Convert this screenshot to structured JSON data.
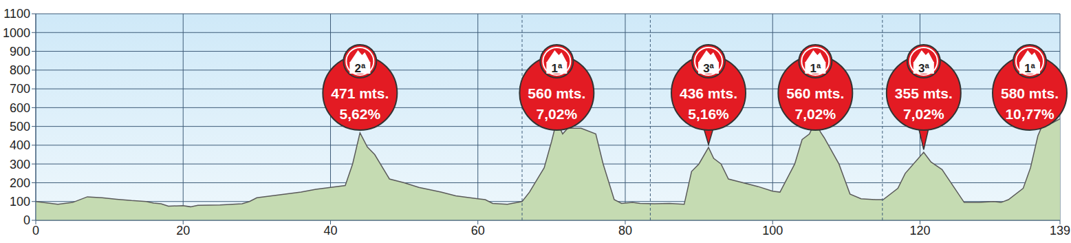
{
  "chart_data": {
    "type": "area",
    "color": "#c5dbb2",
    "grid": true,
    "xlim": [
      0,
      139
    ],
    "ylim": [
      0,
      1100
    ],
    "xticks": [
      0,
      20,
      40,
      60,
      80,
      100,
      120,
      139
    ],
    "yticks": [
      0,
      100,
      200,
      300,
      400,
      500,
      600,
      700,
      800,
      900,
      1000,
      1100
    ],
    "x": [
      0,
      3,
      5,
      7,
      9,
      11,
      13,
      15,
      16,
      17,
      18,
      20,
      21,
      22,
      25,
      28,
      29,
      30,
      32,
      34,
      36,
      38,
      40,
      42,
      43,
      44,
      45,
      46,
      48,
      50,
      52,
      55,
      57,
      60,
      61,
      62,
      64,
      66,
      67,
      69,
      70,
      70.7,
      71.5,
      72.2,
      74,
      76,
      77,
      78.5,
      79.5,
      81,
      82,
      84,
      86,
      88,
      89,
      90,
      91.3,
      92,
      93,
      94,
      96,
      98,
      100,
      101,
      103,
      104,
      105,
      105.8,
      106.5,
      107,
      109,
      110.5,
      112,
      114,
      115,
      117,
      118,
      120.5,
      121.5,
      123,
      126,
      128,
      130,
      131,
      132,
      134,
      135,
      136,
      137.2,
      138,
      139
    ],
    "values": [
      100,
      85,
      95,
      125,
      120,
      112,
      105,
      100,
      92,
      88,
      75,
      78,
      72,
      80,
      82,
      88,
      100,
      120,
      130,
      140,
      150,
      165,
      175,
      185,
      300,
      466,
      390,
      350,
      220,
      200,
      175,
      150,
      130,
      115,
      110,
      90,
      85,
      100,
      150,
      280,
      420,
      530,
      460,
      490,
      490,
      460,
      300,
      110,
      90,
      95,
      90,
      88,
      90,
      85,
      260,
      300,
      388,
      330,
      300,
      220,
      200,
      180,
      155,
      150,
      300,
      430,
      460,
      530,
      470,
      440,
      300,
      140,
      115,
      110,
      110,
      170,
      250,
      362,
      310,
      270,
      95,
      95,
      100,
      95,
      110,
      170,
      280,
      450,
      560,
      520,
      540
    ],
    "dashed_x": [
      66,
      83.4,
      114.9
    ],
    "annotations": [
      {
        "x": 44,
        "y": 466,
        "category": "2ª",
        "altitude": "471 mts.",
        "gradient": "5,62%"
      },
      {
        "x": 70.7,
        "y": 530,
        "category": "1ª",
        "altitude": "560 mts.",
        "gradient": "7,02%"
      },
      {
        "x": 91.3,
        "y": 388,
        "category": "3ª",
        "altitude": "436 mts.",
        "gradient": "5,16%"
      },
      {
        "x": 105.8,
        "y": 530,
        "category": "1ª",
        "altitude": "560 mts.",
        "gradient": "7,02%"
      },
      {
        "x": 120.5,
        "y": 362,
        "category": "3ª",
        "altitude": "355 mts.",
        "gradient": "7,02%"
      },
      {
        "x": 137.2,
        "y": 560,
        "category": "1ª",
        "altitude": "580 mts.",
        "gradient": "10,77%"
      }
    ]
  }
}
